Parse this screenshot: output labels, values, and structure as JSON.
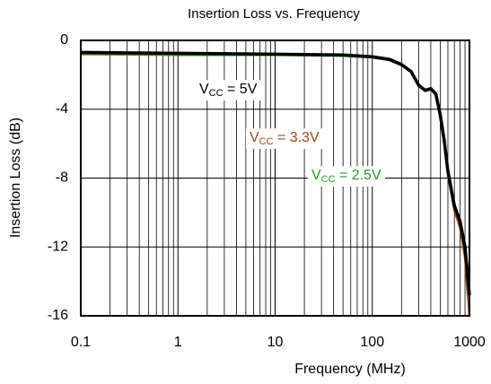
{
  "chart_data": {
    "type": "line",
    "title": "Insertion Loss vs. Frequency",
    "xlabel": "Frequency (MHz)",
    "ylabel": "Insertion Loss (dB)",
    "xscale": "log",
    "grid": true,
    "minor_grid": true,
    "xlim": [
      0.1,
      1000
    ],
    "xticks": [
      0.1,
      1,
      10,
      100,
      1000
    ],
    "ylim": [
      -16,
      0
    ],
    "yticks": [
      0,
      -4,
      -8,
      -12,
      -16
    ],
    "x": [
      0.1,
      1,
      10,
      50,
      100,
      150,
      200,
      250,
      300,
      350,
      400,
      450,
      500,
      550,
      600,
      700,
      800,
      900,
      1000
    ],
    "series": [
      {
        "color": "#2a9a2a",
        "values": [
          -0.8,
          -0.85,
          -0.85,
          -0.9,
          -1.0,
          -1.15,
          -1.45,
          -1.85,
          -2.65,
          -2.95,
          -2.85,
          -3.15,
          -4.5,
          -6.0,
          -7.8,
          -9.9,
          -10.8,
          -12.2,
          -15.5
        ]
      },
      {
        "color": "#a0461e",
        "values": [
          -0.75,
          -0.8,
          -0.8,
          -0.85,
          -0.95,
          -1.1,
          -1.4,
          -1.8,
          -2.6,
          -2.9,
          -2.8,
          -3.1,
          -4.4,
          -5.9,
          -7.7,
          -9.8,
          -10.9,
          -12.6,
          -16
        ]
      },
      {
        "color": "#000000",
        "values": [
          -0.7,
          -0.75,
          -0.8,
          -0.85,
          -0.95,
          -1.1,
          -1.4,
          -1.8,
          -2.6,
          -2.9,
          -2.8,
          -3.1,
          -4.3,
          -5.8,
          -7.6,
          -9.6,
          -10.5,
          -12.0,
          -14.8
        ]
      }
    ],
    "annotations": [
      {
        "main": "V",
        "sub": "CC",
        "suffix": " = 5V",
        "color": "#000000"
      },
      {
        "main": "V",
        "sub": "CC",
        "suffix": " = 3.3V",
        "color": "#a0461e"
      },
      {
        "main": "V",
        "sub": "CC",
        "suffix": " = 2.5V",
        "color": "#2a9a2a"
      }
    ]
  }
}
